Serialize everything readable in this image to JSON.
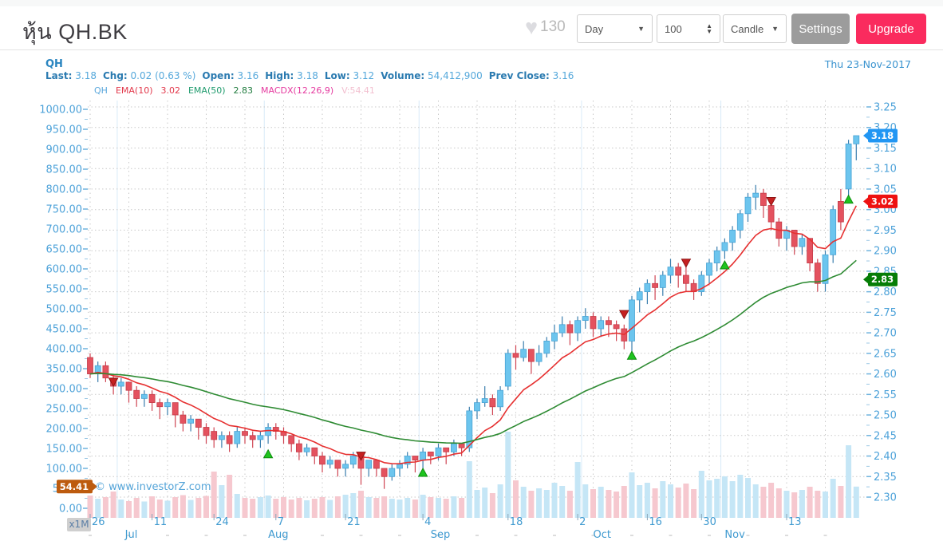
{
  "header": {
    "title": "หุ้น QH.BK",
    "likes": "130",
    "period": "Day",
    "bars": "100",
    "chart_type": "Candle",
    "settings_label": "Settings",
    "upgrade_label": "Upgrade"
  },
  "chart_header": {
    "symbol": "QH",
    "date": "Thu 23-Nov-2017",
    "stats": [
      [
        "Last:",
        "3.18"
      ],
      [
        "Chg:",
        "0.02 (0.63 %)"
      ],
      [
        "Open:",
        "3.16"
      ],
      [
        "High:",
        "3.18"
      ],
      [
        "Low:",
        "3.12"
      ],
      [
        "Volume:",
        "54,412,900"
      ],
      [
        "Prev Close:",
        "3.16"
      ]
    ]
  },
  "legend": {
    "symbol": "QH",
    "ema10_label": "EMA(10)",
    "ema10_value": "3.02",
    "ema50_label": "EMA(50)",
    "ema50_value": "2.83",
    "macd_label": "MACDX(12,26,9)",
    "volume_label": "V:54.41"
  },
  "watermark": "© www.investorZ.com",
  "chart_data": {
    "type": "candlestick",
    "symbol": "QH",
    "interval": "Day",
    "bars_shown": 100,
    "price_axis": {
      "min": 2.3,
      "max": 3.25,
      "step": 0.05,
      "side": "right"
    },
    "volume_axis": {
      "min": 0,
      "max": 1000,
      "step": 50,
      "unit": "x1M",
      "side": "left"
    },
    "overlays": [
      {
        "name": "EMA(10)",
        "period": 10,
        "k": 0.18,
        "color": "#e63030"
      },
      {
        "name": "EMA(50)",
        "period": 50,
        "k": 0.052,
        "color": "#2e8b33"
      }
    ],
    "price_tags": [
      {
        "label": "3.18",
        "price": 3.18,
        "color": "#2196f3"
      },
      {
        "label": "3.02",
        "price": 3.02,
        "color": "#ee1111"
      },
      {
        "label": "2.83",
        "price": 2.83,
        "color": "#067d06"
      }
    ],
    "volume_tag": {
      "label": "54.41",
      "value": 54.41,
      "color": "#bd5b0e"
    },
    "x_ticks": [
      {
        "i": 0,
        "label": "26"
      },
      {
        "i": 8,
        "label": "11"
      },
      {
        "i": 16,
        "label": "24"
      },
      {
        "i": 24,
        "label": "7"
      },
      {
        "i": 33,
        "label": "21"
      },
      {
        "i": 43,
        "label": "4"
      },
      {
        "i": 54,
        "label": "18"
      },
      {
        "i": 63,
        "label": "2"
      },
      {
        "i": 72,
        "label": "16"
      },
      {
        "i": 79,
        "label": "30"
      },
      {
        "i": 90,
        "label": "13"
      }
    ],
    "month_labels": [
      {
        "i": 4.5,
        "label": "Jul"
      },
      {
        "i": 23,
        "label": "Aug"
      },
      {
        "i": 44,
        "label": "Sep"
      },
      {
        "i": 65,
        "label": "Oct"
      },
      {
        "i": 82,
        "label": "Nov"
      }
    ],
    "month_separators": [
      3.5,
      22.5,
      42.5,
      63.5,
      81.5
    ],
    "markers": [
      {
        "i": 3,
        "type": "sell",
        "price": 2.57
      },
      {
        "i": 23,
        "type": "buy",
        "price": 2.415
      },
      {
        "i": 35,
        "type": "sell",
        "price": 2.39
      },
      {
        "i": 43,
        "type": "buy",
        "price": 2.37
      },
      {
        "i": 69,
        "type": "sell",
        "price": 2.735
      },
      {
        "i": 70,
        "type": "buy",
        "price": 2.655
      },
      {
        "i": 77,
        "type": "sell",
        "price": 2.86
      },
      {
        "i": 82,
        "type": "buy",
        "price": 2.875
      },
      {
        "i": 88,
        "type": "sell",
        "price": 3.01
      },
      {
        "i": 98,
        "type": "buy",
        "price": 3.035
      }
    ],
    "colors": {
      "up_fill": "#6cc5ee",
      "up_stroke": "#4aa3d4",
      "up_wick": "#3a7eae",
      "down_fill": "#e4525f",
      "down_stroke": "#c43d49",
      "down_wick": "#cf4553",
      "vol_up": "#c5e6f6",
      "vol_down": "#f6c8cf",
      "grid": "#c9c9c9",
      "axis_text": "#4da2d9",
      "separator": "#d8eaf8",
      "buy_marker": "#1ec41e",
      "sell_marker": "#c62020"
    },
    "candles": [
      [
        2.64,
        2.65,
        2.59,
        2.6,
        32
      ],
      [
        2.6,
        2.63,
        2.58,
        2.62,
        24
      ],
      [
        2.62,
        2.63,
        2.58,
        2.59,
        28
      ],
      [
        2.59,
        2.6,
        2.55,
        2.57,
        42
      ],
      [
        2.57,
        2.59,
        2.55,
        2.58,
        22
      ],
      [
        2.58,
        2.58,
        2.53,
        2.56,
        18
      ],
      [
        2.56,
        2.57,
        2.52,
        2.54,
        26
      ],
      [
        2.54,
        2.56,
        2.52,
        2.55,
        17
      ],
      [
        2.55,
        2.56,
        2.51,
        2.53,
        30
      ],
      [
        2.53,
        2.54,
        2.49,
        2.52,
        22
      ],
      [
        2.52,
        2.54,
        2.5,
        2.53,
        19
      ],
      [
        2.53,
        2.53,
        2.47,
        2.5,
        28
      ],
      [
        2.5,
        2.51,
        2.46,
        2.48,
        33
      ],
      [
        2.48,
        2.5,
        2.46,
        2.49,
        21
      ],
      [
        2.49,
        2.49,
        2.44,
        2.47,
        26
      ],
      [
        2.47,
        2.48,
        2.43,
        2.45,
        31
      ],
      [
        2.46,
        2.47,
        2.42,
        2.44,
        92
      ],
      [
        2.44,
        2.46,
        2.42,
        2.45,
        58
      ],
      [
        2.45,
        2.46,
        2.41,
        2.43,
        84
      ],
      [
        2.43,
        2.47,
        2.42,
        2.46,
        36
      ],
      [
        2.46,
        2.47,
        2.43,
        2.45,
        26
      ],
      [
        2.45,
        2.46,
        2.42,
        2.44,
        24
      ],
      [
        2.44,
        2.46,
        2.42,
        2.45,
        28
      ],
      [
        2.45,
        2.48,
        2.43,
        2.47,
        32
      ],
      [
        2.47,
        2.48,
        2.44,
        2.46,
        24
      ],
      [
        2.46,
        2.47,
        2.43,
        2.45,
        28
      ],
      [
        2.45,
        2.45,
        2.41,
        2.43,
        22
      ],
      [
        2.43,
        2.44,
        2.39,
        2.41,
        26
      ],
      [
        2.41,
        2.43,
        2.4,
        2.42,
        20
      ],
      [
        2.42,
        2.42,
        2.38,
        2.4,
        24
      ],
      [
        2.4,
        2.41,
        2.36,
        2.38,
        28
      ],
      [
        2.38,
        2.4,
        2.37,
        2.39,
        21
      ],
      [
        2.39,
        2.39,
        2.35,
        2.37,
        30
      ],
      [
        2.37,
        2.39,
        2.35,
        2.38,
        34
      ],
      [
        2.38,
        2.41,
        2.37,
        2.4,
        38
      ],
      [
        2.4,
        2.41,
        2.33,
        2.37,
        44
      ],
      [
        2.37,
        2.39,
        2.35,
        2.39,
        28
      ],
      [
        2.39,
        2.39,
        2.35,
        2.37,
        26
      ],
      [
        2.37,
        2.37,
        2.32,
        2.35,
        30
      ],
      [
        2.35,
        2.38,
        2.34,
        2.37,
        24
      ],
      [
        2.37,
        2.39,
        2.35,
        2.38,
        22
      ],
      [
        2.38,
        2.41,
        2.37,
        2.4,
        26
      ],
      [
        2.4,
        2.4,
        2.36,
        2.39,
        22
      ],
      [
        2.39,
        2.42,
        2.37,
        2.41,
        34
      ],
      [
        2.41,
        2.41,
        2.38,
        2.4,
        28
      ],
      [
        2.4,
        2.43,
        2.39,
        2.42,
        26
      ],
      [
        2.42,
        2.42,
        2.38,
        2.41,
        24
      ],
      [
        2.41,
        2.44,
        2.4,
        2.43,
        30
      ],
      [
        2.43,
        2.43,
        2.4,
        2.42,
        26
      ],
      [
        2.42,
        2.52,
        2.41,
        2.51,
        118
      ],
      [
        2.51,
        2.54,
        2.49,
        2.53,
        46
      ],
      [
        2.53,
        2.57,
        2.52,
        2.54,
        52
      ],
      [
        2.54,
        2.55,
        2.5,
        2.52,
        38
      ],
      [
        2.52,
        2.57,
        2.51,
        2.56,
        60
      ],
      [
        2.57,
        2.66,
        2.56,
        2.65,
        192
      ],
      [
        2.65,
        2.67,
        2.61,
        2.64,
        70
      ],
      [
        2.64,
        2.68,
        2.63,
        2.66,
        54
      ],
      [
        2.66,
        2.66,
        2.6,
        2.63,
        44
      ],
      [
        2.63,
        2.67,
        2.62,
        2.65,
        50
      ],
      [
        2.65,
        2.69,
        2.64,
        2.68,
        46
      ],
      [
        2.68,
        2.72,
        2.66,
        2.7,
        64
      ],
      [
        2.7,
        2.74,
        2.69,
        2.72,
        56
      ],
      [
        2.72,
        2.73,
        2.67,
        2.7,
        44
      ],
      [
        2.7,
        2.74,
        2.68,
        2.73,
        116
      ],
      [
        2.73,
        2.76,
        2.71,
        2.74,
        60
      ],
      [
        2.74,
        2.75,
        2.69,
        2.71,
        48
      ],
      [
        2.71,
        2.74,
        2.69,
        2.73,
        54
      ],
      [
        2.73,
        2.74,
        2.69,
        2.72,
        46
      ],
      [
        2.72,
        2.73,
        2.68,
        2.71,
        42
      ],
      [
        2.71,
        2.72,
        2.66,
        2.68,
        56
      ],
      [
        2.68,
        2.79,
        2.65,
        2.78,
        90
      ],
      [
        2.78,
        2.81,
        2.75,
        2.8,
        58
      ],
      [
        2.8,
        2.83,
        2.77,
        2.82,
        64
      ],
      [
        2.82,
        2.84,
        2.78,
        2.81,
        50
      ],
      [
        2.81,
        2.85,
        2.79,
        2.84,
        68
      ],
      [
        2.84,
        2.88,
        2.82,
        2.86,
        60
      ],
      [
        2.86,
        2.87,
        2.81,
        2.84,
        52
      ],
      [
        2.84,
        2.86,
        2.8,
        2.82,
        62
      ],
      [
        2.82,
        2.83,
        2.78,
        2.8,
        48
      ],
      [
        2.8,
        2.85,
        2.79,
        2.84,
        94
      ],
      [
        2.84,
        2.88,
        2.82,
        2.87,
        70
      ],
      [
        2.87,
        2.91,
        2.85,
        2.9,
        74
      ],
      [
        2.9,
        2.93,
        2.88,
        2.92,
        80
      ],
      [
        2.92,
        2.96,
        2.9,
        2.95,
        68
      ],
      [
        2.95,
        3.0,
        2.93,
        2.99,
        84
      ],
      [
        2.99,
        3.04,
        2.97,
        3.03,
        76
      ],
      [
        3.03,
        3.06,
        3.0,
        3.04,
        60
      ],
      [
        3.04,
        3.05,
        2.98,
        3.01,
        54
      ],
      [
        3.01,
        3.02,
        2.95,
        2.97,
        64
      ],
      [
        2.97,
        2.98,
        2.91,
        2.93,
        50
      ],
      [
        2.93,
        2.96,
        2.9,
        2.95,
        44
      ],
      [
        2.95,
        2.95,
        2.89,
        2.91,
        40
      ],
      [
        2.91,
        2.94,
        2.89,
        2.93,
        46
      ],
      [
        2.93,
        2.93,
        2.85,
        2.87,
        54
      ],
      [
        2.87,
        2.88,
        2.8,
        2.82,
        44
      ],
      [
        2.82,
        2.9,
        2.8,
        2.89,
        42
      ],
      [
        2.89,
        3.01,
        2.87,
        3.0,
        74
      ],
      [
        3.02,
        3.05,
        2.95,
        2.97,
        56
      ],
      [
        3.05,
        3.17,
        3.03,
        3.16,
        158
      ],
      [
        3.16,
        3.18,
        3.12,
        3.18,
        54.41
      ]
    ]
  }
}
